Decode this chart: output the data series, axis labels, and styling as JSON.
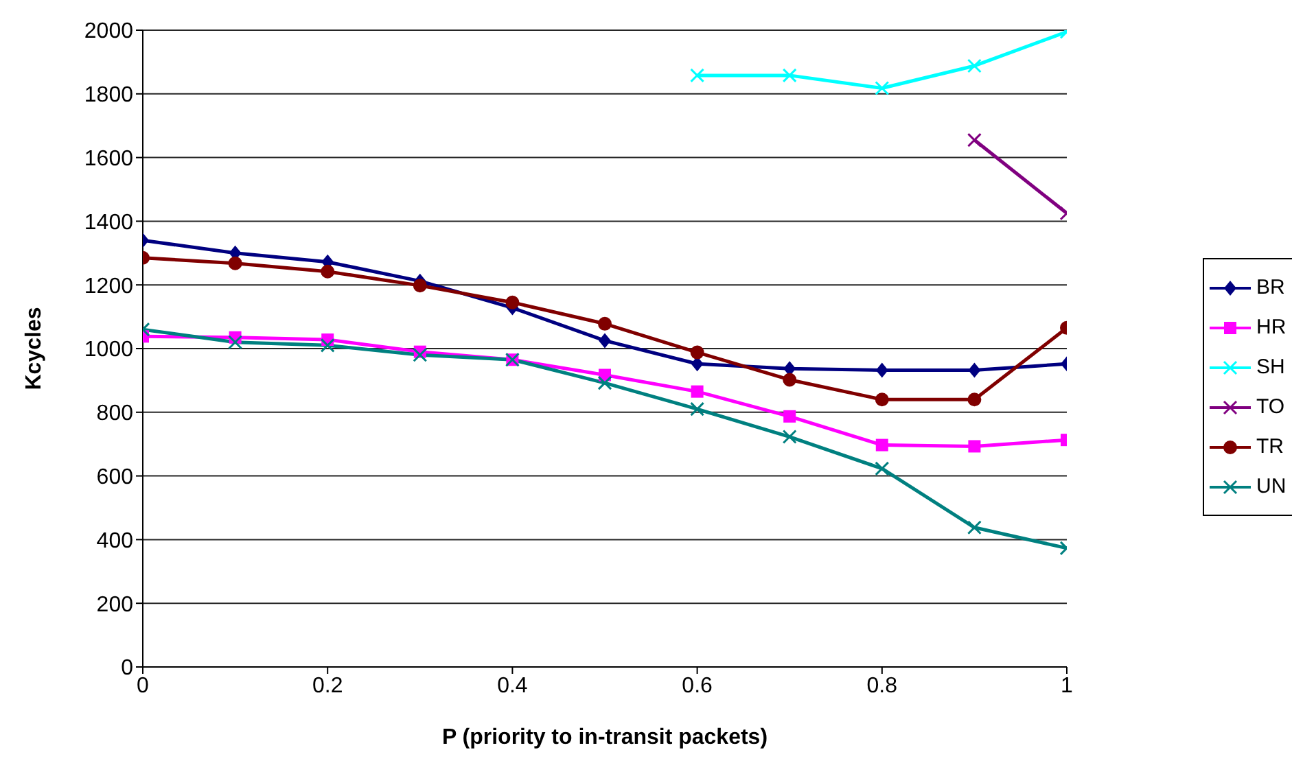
{
  "chart_data": {
    "type": "line",
    "xlabel": "P (priority to in-transit packets)",
    "ylabel": "Kcycles",
    "x": [
      0,
      0.1,
      0.2,
      0.3,
      0.4,
      0.5,
      0.6,
      0.7,
      0.8,
      0.9,
      1
    ],
    "xlim": [
      0,
      1
    ],
    "xticks": [
      0,
      0.2,
      0.4,
      0.6,
      0.8,
      1
    ],
    "ylim": [
      0,
      2000
    ],
    "yticks": [
      0,
      200,
      400,
      600,
      800,
      1000,
      1200,
      1400,
      1600,
      1800,
      2000
    ],
    "grid": "y",
    "legend": "right",
    "series": [
      {
        "name": "BR",
        "color": "#000080",
        "marker": "diamond",
        "values": [
          1340,
          1300,
          1272,
          1212,
          1128,
          1025,
          952,
          937,
          932,
          932,
          952
        ]
      },
      {
        "name": "HR",
        "color": "#ff00ff",
        "marker": "square",
        "values": [
          1038,
          1035,
          1028,
          990,
          965,
          917,
          865,
          787,
          697,
          693,
          713
        ]
      },
      {
        "name": "SH",
        "color": "#00ffff",
        "marker": "cross",
        "values": [
          null,
          null,
          null,
          null,
          null,
          null,
          1858,
          1858,
          1818,
          1888,
          1995
        ]
      },
      {
        "name": "TO",
        "color": "#800080",
        "marker": "cross",
        "values": [
          null,
          null,
          null,
          null,
          null,
          null,
          null,
          null,
          null,
          1655,
          1425
        ]
      },
      {
        "name": "TR",
        "color": "#800000",
        "marker": "circle",
        "values": [
          1285,
          1268,
          1242,
          1198,
          1145,
          1078,
          988,
          902,
          840,
          840,
          1065
        ]
      },
      {
        "name": "UN",
        "color": "#008080",
        "marker": "cross",
        "values": [
          1060,
          1020,
          1010,
          980,
          965,
          892,
          810,
          723,
          623,
          438,
          373
        ]
      }
    ]
  }
}
